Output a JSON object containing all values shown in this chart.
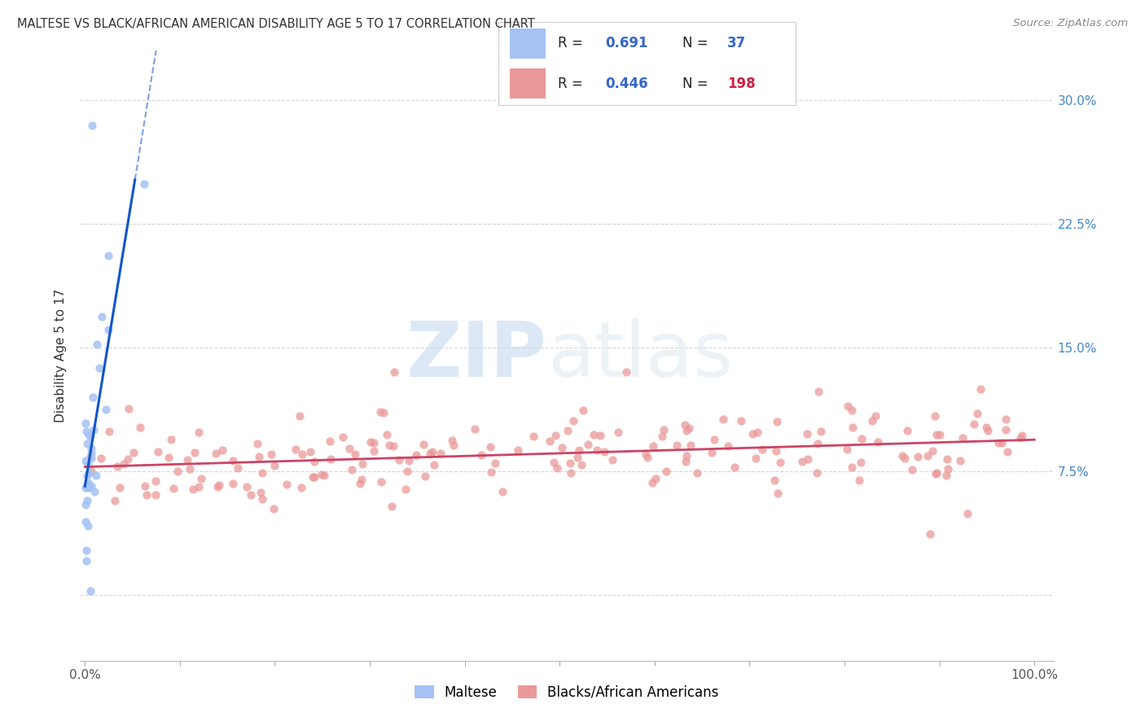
{
  "title": "MALTESE VS BLACK/AFRICAN AMERICAN DISABILITY AGE 5 TO 17 CORRELATION CHART",
  "source": "Source: ZipAtlas.com",
  "ylabel": "Disability Age 5 to 17",
  "legend_blue_r": "0.691",
  "legend_blue_n": "37",
  "legend_pink_r": "0.446",
  "legend_pink_n": "198",
  "blue_color": "#a4c2f4",
  "pink_color": "#ea9999",
  "blue_line_color": "#1155cc",
  "pink_line_color": "#cc4466",
  "background_color": "#ffffff",
  "watermark_zip": "ZIP",
  "watermark_atlas": "atlas",
  "right_tick_color": "#4488cc",
  "title_color": "#333333",
  "source_color": "#888888"
}
